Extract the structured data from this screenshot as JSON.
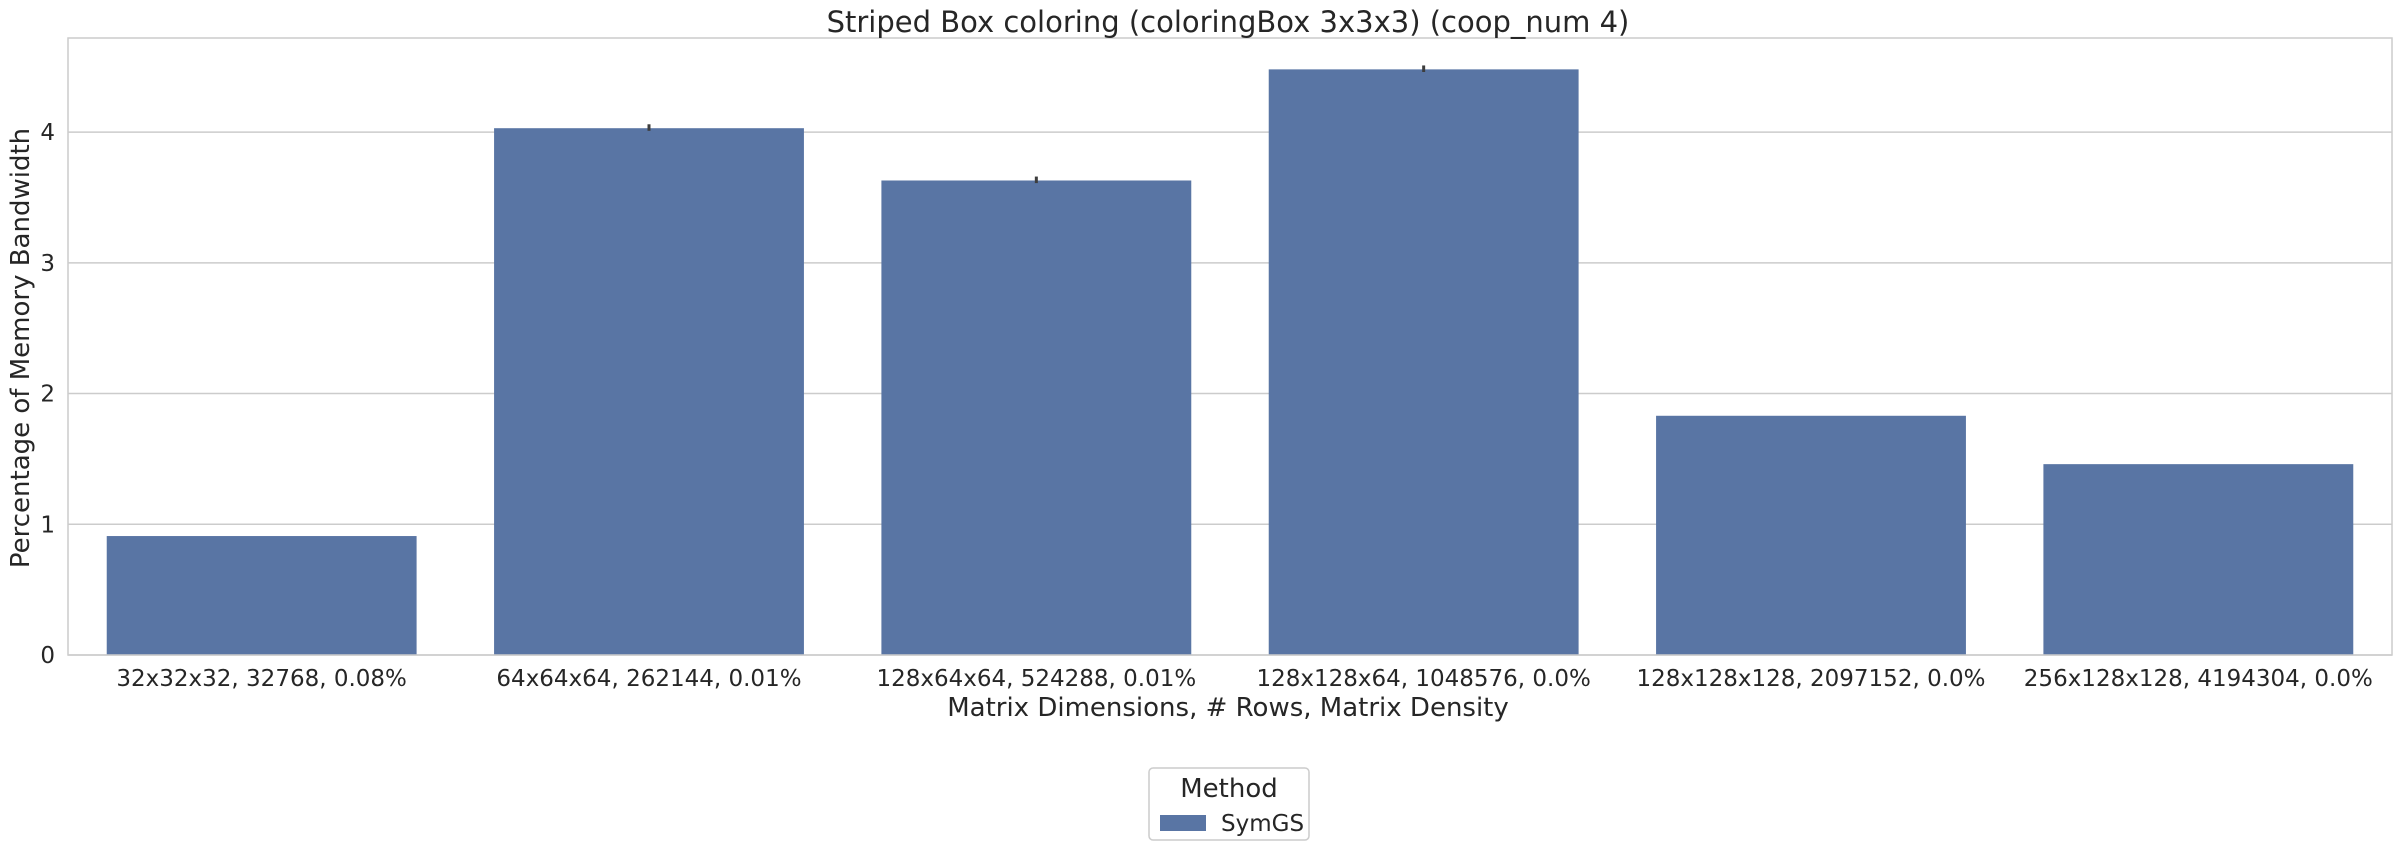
{
  "chart_data": {
    "type": "bar",
    "title": "Striped Box coloring (coloringBox 3x3x3) (coop_num 4)",
    "xlabel": "Matrix Dimensions, # Rows, Matrix Density",
    "ylabel": "Percentage of Memory Bandwidth",
    "categories": [
      "32x32x32, 32768, 0.08%",
      "64x64x64, 262144, 0.01%",
      "128x64x64, 524288, 0.01%",
      "128x128x64, 1048576, 0.0%",
      "128x128x128, 2097152, 0.0%",
      "256x128x128, 4194304, 0.0%"
    ],
    "series": [
      {
        "name": "SymGS",
        "values": [
          0.91,
          4.03,
          3.63,
          4.48,
          1.83,
          1.46
        ],
        "error_upper": [
          0.91,
          4.06,
          3.66,
          4.51,
          1.83,
          1.46
        ],
        "error_lower": [
          0.91,
          4.01,
          3.61,
          4.46,
          1.83,
          1.46
        ],
        "color": "#5975a4"
      }
    ],
    "yticks": [
      0,
      1,
      2,
      3,
      4
    ],
    "ylim": [
      0,
      4.72
    ],
    "grid": true,
    "legend": {
      "title": "Method",
      "placement": "bottom-center, outside plot"
    }
  }
}
